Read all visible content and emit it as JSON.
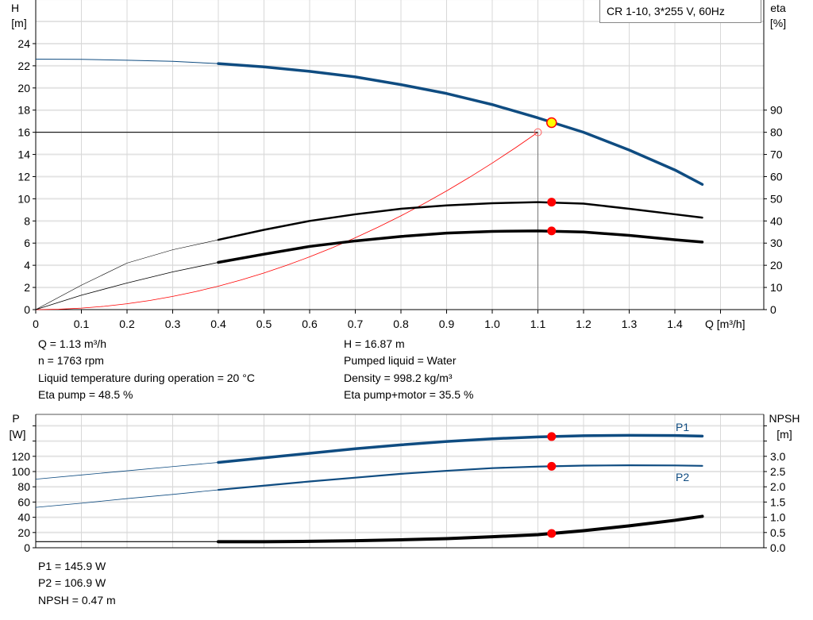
{
  "model_label": "CR 1-10, 3*255 V, 60Hz",
  "chart_data": [
    {
      "type": "line",
      "name": "head-efficiency",
      "ylabel": "H",
      "yunit": "[m]",
      "y2label": "eta",
      "y2unit": "[%]",
      "xlabel": "Q [m³/h]",
      "xlim": [
        0,
        1.6
      ],
      "ylim": [
        0,
        28
      ],
      "y2lim": [
        0,
        140
      ],
      "xticks": [
        "0",
        "0.1",
        "0.2",
        "0.3",
        "0.4",
        "0.5",
        "0.6",
        "0.7",
        "0.8",
        "0.9",
        "1.0",
        "1.1",
        "1.2",
        "1.3",
        "1.4"
      ],
      "yticks": [
        "0",
        "2",
        "4",
        "6",
        "8",
        "10",
        "12",
        "14",
        "16",
        "18",
        "20",
        "22",
        "24"
      ],
      "y2ticks": [
        "0",
        "10",
        "20",
        "30",
        "40",
        "50",
        "60",
        "70",
        "80",
        "90"
      ],
      "grid": true,
      "x": [
        0,
        0.1,
        0.2,
        0.3,
        0.4,
        0.5,
        0.6,
        0.7,
        0.8,
        0.9,
        1.0,
        1.1,
        1.2,
        1.3,
        1.4,
        1.46
      ],
      "series": [
        {
          "key": "H",
          "axis": "left",
          "color": "#0f4c81",
          "values": [
            22.6,
            22.58,
            22.5,
            22.4,
            22.2,
            21.9,
            21.5,
            21.0,
            20.3,
            19.5,
            18.5,
            17.3,
            16.0,
            14.4,
            12.6,
            11.3
          ]
        },
        {
          "key": "eta_pump",
          "axis": "right",
          "color": "#000000",
          "values": [
            0,
            11,
            21,
            27,
            31.5,
            36,
            40,
            43,
            45.5,
            47,
            48,
            48.5,
            47.8,
            45.5,
            43,
            41.5
          ]
        },
        {
          "key": "eta_pump_motor",
          "axis": "right",
          "color": "#000000",
          "values": [
            0,
            6.5,
            12,
            17,
            21.3,
            25,
            28.5,
            31,
            33,
            34.5,
            35.3,
            35.5,
            35,
            33.5,
            31.5,
            30.5
          ]
        }
      ],
      "system_curve": {
        "color": "#ff0000",
        "q": 1.1,
        "h": 16
      },
      "duty_point": {
        "q": 1.13,
        "h": 16.87,
        "eta_pump": 48.5,
        "eta_pump_motor": 35.5,
        "color": "#ffff00"
      },
      "colors": {
        "grid": "#d8d8d8",
        "point": "#ff0000"
      }
    },
    {
      "type": "line",
      "name": "power-npsh",
      "ylabel": "P",
      "yunit": "[W]",
      "y2label": "NPSH",
      "y2unit": "[m]",
      "xlim": [
        0,
        1.6
      ],
      "ylim": [
        0,
        170
      ],
      "y2lim": [
        0,
        4.25
      ],
      "yticks": [
        "0",
        "20",
        "40",
        "60",
        "80",
        "100",
        "120"
      ],
      "y2ticks": [
        "0.0",
        "0.5",
        "1.0",
        "1.5",
        "2.0",
        "2.5",
        "3.0"
      ],
      "grid": true,
      "x": [
        0,
        0.1,
        0.2,
        0.3,
        0.4,
        0.5,
        0.6,
        0.7,
        0.8,
        0.9,
        1.0,
        1.1,
        1.2,
        1.3,
        1.4,
        1.46
      ],
      "series": [
        {
          "key": "P1",
          "name": "P1",
          "axis": "left",
          "color": "#0f4c81",
          "values": [
            90,
            95.5,
            101,
            106.5,
            112,
            118,
            124,
            130,
            135,
            139.5,
            143,
            145.5,
            147,
            147.5,
            147.3,
            146.5
          ]
        },
        {
          "key": "P2",
          "name": "P2",
          "axis": "left",
          "color": "#0f4c81",
          "values": [
            53,
            58.5,
            64.5,
            70,
            76,
            81.5,
            87,
            92,
            97,
            101,
            104.5,
            106.5,
            107.8,
            108.2,
            108,
            107.5
          ]
        },
        {
          "key": "NPSH",
          "axis": "right",
          "color": "#000000",
          "values": [
            0.2,
            0.2,
            0.2,
            0.2,
            0.2,
            0.2,
            0.21,
            0.23,
            0.26,
            0.3,
            0.36,
            0.43,
            0.56,
            0.72,
            0.9,
            1.03
          ]
        }
      ],
      "duty_point": {
        "q": 1.13,
        "P1": 145.9,
        "P2": 106.9,
        "NPSH": 0.47
      }
    }
  ],
  "results_top": {
    "left": [
      "Q = 1.13 m³/h",
      "n = 1763 rpm",
      "Liquid temperature during operation = 20 °C",
      "Eta pump = 48.5 %"
    ],
    "right": [
      "H = 16.87 m",
      "Pumped liquid = Water",
      "Density = 998.2 kg/m³",
      "Eta pump+motor = 35.5 %"
    ]
  },
  "results_bottom": [
    "P1 = 145.9 W",
    "P2 = 106.9 W",
    "NPSH = 0.47 m"
  ]
}
